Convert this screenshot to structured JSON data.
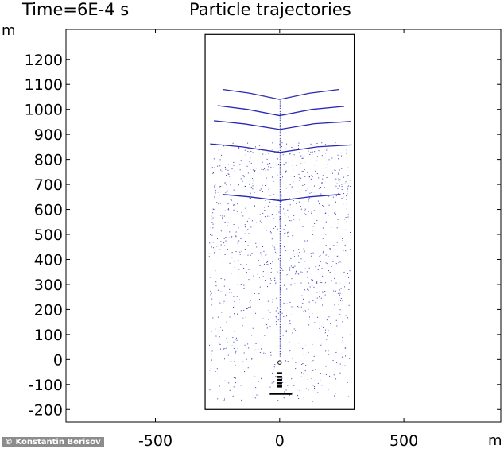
{
  "header": {
    "time_label": "Time=6E-4 s",
    "title": "Particle trajectories"
  },
  "credit": "© Konstantin Borisov",
  "chart_data": {
    "type": "scatter",
    "title": "Particle trajectories",
    "xlabel": "m",
    "ylabel": "m",
    "xlim": [
      -860,
      890
    ],
    "ylim": [
      -250,
      1320
    ],
    "x_ticks": [
      -500,
      0,
      500
    ],
    "x_tick_labels": [
      "-500",
      "0",
      "500"
    ],
    "y_ticks": [
      -200,
      -100,
      0,
      100,
      200,
      300,
      400,
      500,
      600,
      700,
      800,
      900,
      1000,
      1100,
      1200
    ],
    "y_tick_labels": [
      "-200",
      "-100",
      "0",
      "100",
      "200",
      "300",
      "400",
      "500",
      "600",
      "700",
      "800",
      "900",
      "1000",
      "1100",
      "1200"
    ],
    "grid": false,
    "domain_box": {
      "x": [
        -300,
        300
      ],
      "y": [
        -200,
        1300
      ]
    },
    "particle_color": "#1a1aa8",
    "trajectory_color": "#2828b4",
    "source_color": "#000000",
    "trajectories": [
      {
        "points": [
          [
            -230,
            1080
          ],
          [
            -120,
            1065
          ],
          [
            0,
            1040
          ],
          [
            120,
            1065
          ],
          [
            240,
            1080
          ]
        ]
      },
      {
        "points": [
          [
            -250,
            1015
          ],
          [
            -130,
            1000
          ],
          [
            0,
            975
          ],
          [
            130,
            1000
          ],
          [
            260,
            1012
          ]
        ]
      },
      {
        "points": [
          [
            -265,
            955
          ],
          [
            -140,
            942
          ],
          [
            0,
            920
          ],
          [
            140,
            943
          ],
          [
            285,
            952
          ]
        ]
      },
      {
        "points": [
          [
            -280,
            862
          ],
          [
            -150,
            850
          ],
          [
            0,
            828
          ],
          [
            150,
            850
          ],
          [
            290,
            858
          ]
        ]
      },
      {
        "points": [
          [
            -230,
            660
          ],
          [
            -120,
            650
          ],
          [
            0,
            635
          ],
          [
            120,
            650
          ],
          [
            245,
            660
          ]
        ]
      }
    ],
    "central_column": {
      "x": 0,
      "y": [
        15,
        1040
      ]
    },
    "source_ring_ys": [
      -55,
      -70,
      -82,
      -95,
      -108
    ],
    "source_ring_x": [
      -10,
      10
    ],
    "source_bar": {
      "x": [
        -40,
        50
      ],
      "y": -137
    },
    "nozzle_y": -12,
    "particle_density_note": "random speckle across domain"
  }
}
